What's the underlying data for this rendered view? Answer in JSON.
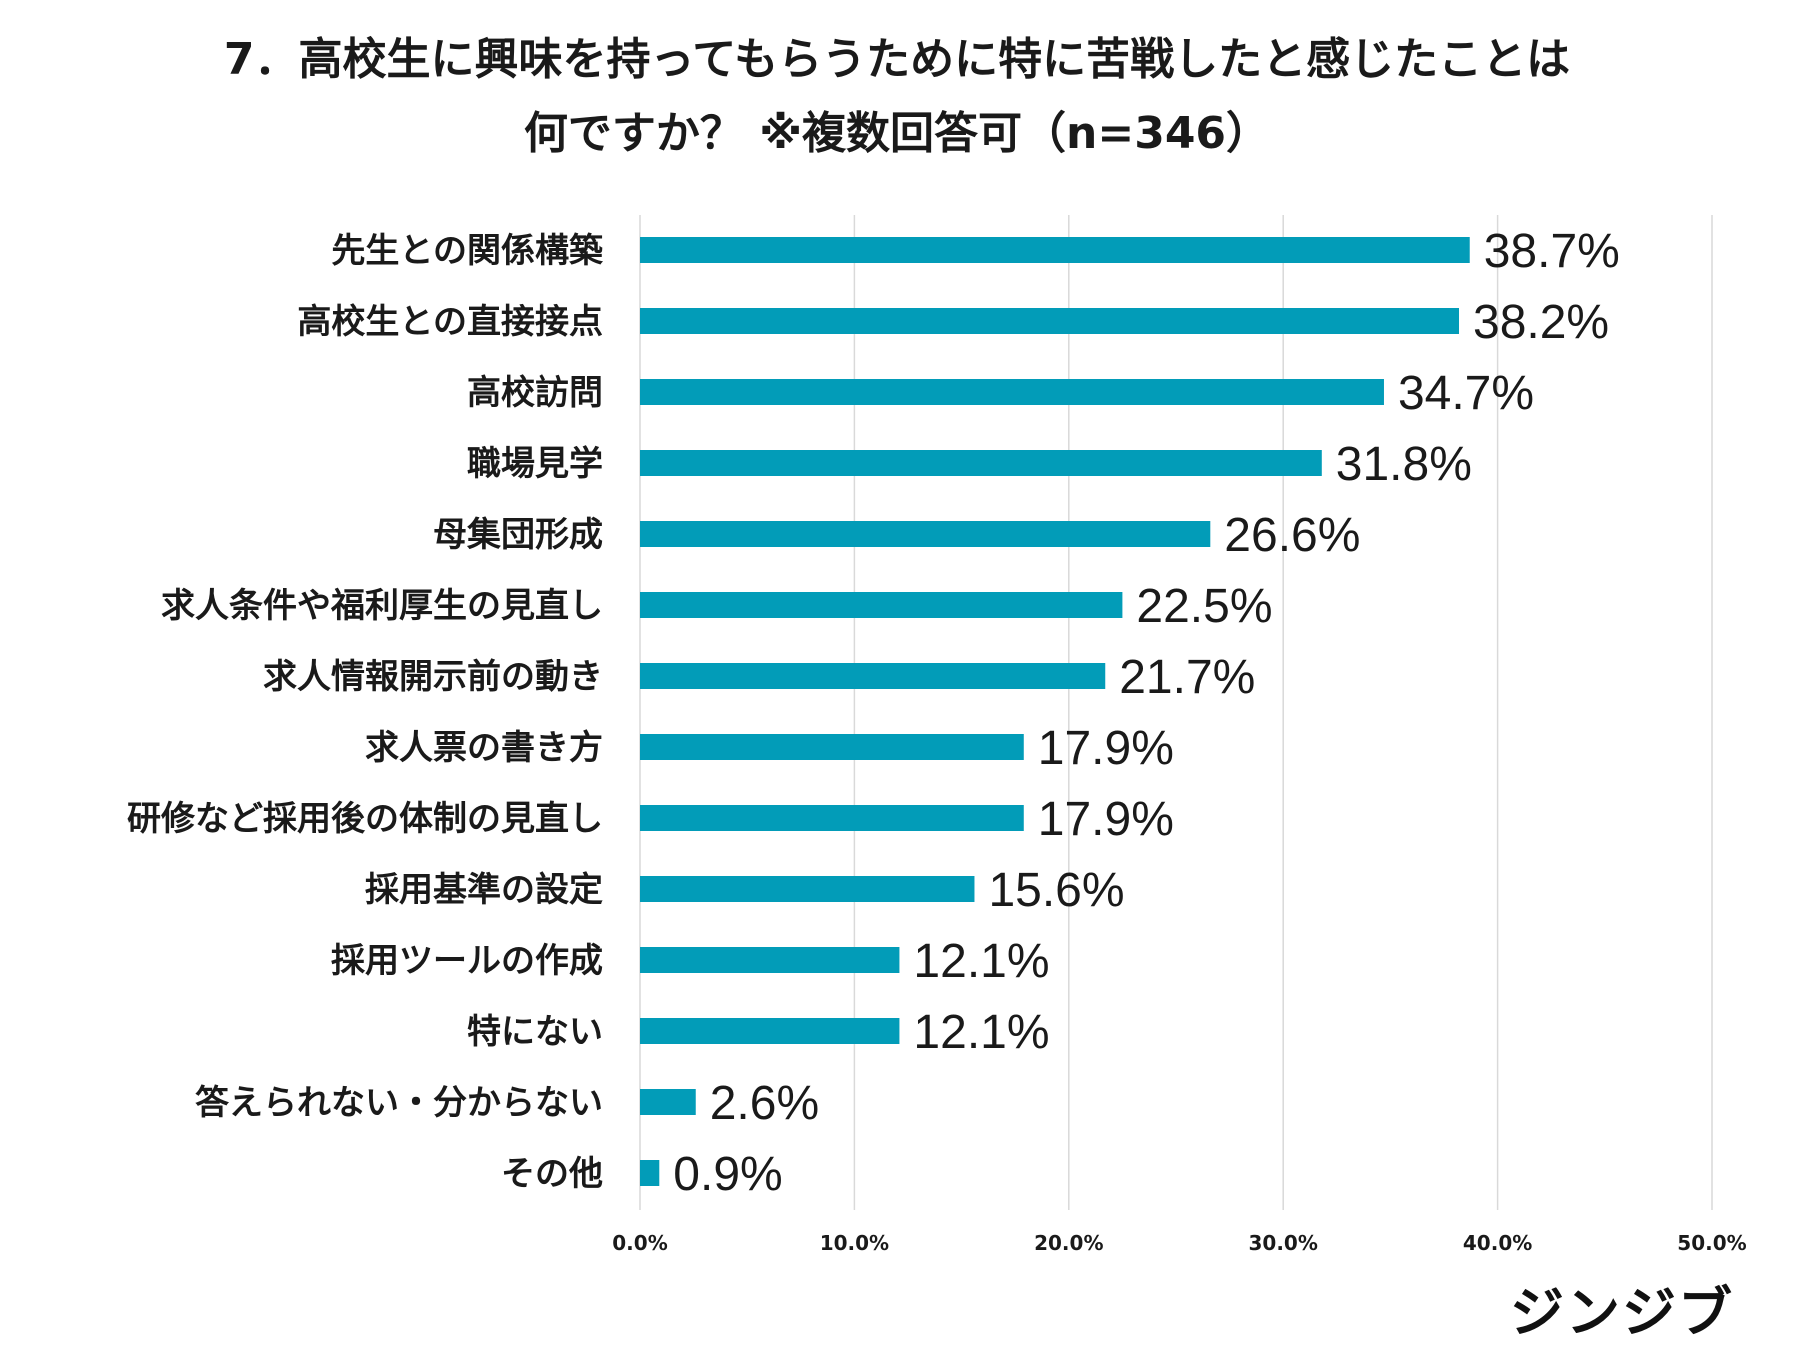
{
  "title_line1": "7．高校生に興味を持ってもらうために特に苦戦したと感じたことは",
  "title_line2": "何ですか？ ※複数回答可（n=346）",
  "logo_text": "ジンジブ",
  "colors": {
    "bar": "#029CB8",
    "grid": "#D9D9D9",
    "text": "#1a1a1a"
  },
  "chart_data": {
    "type": "bar",
    "orientation": "horizontal",
    "categories": [
      "先生との関係構築",
      "高校生との直接接点",
      "高校訪問",
      "職場見学",
      "母集団形成",
      "求人条件や福利厚生の見直し",
      "求人情報開示前の動き",
      "求人票の書き方",
      "研修など採用後の体制の見直し",
      "採用基準の設定",
      "採用ツールの作成",
      "特にない",
      "答えられない・分からない",
      "その他"
    ],
    "values": [
      38.7,
      38.2,
      34.7,
      31.8,
      26.6,
      22.5,
      21.7,
      17.9,
      17.9,
      15.6,
      12.1,
      12.1,
      2.6,
      0.9
    ],
    "value_labels": [
      "38.7%",
      "38.2%",
      "34.7%",
      "31.8%",
      "26.6%",
      "22.5%",
      "21.7%",
      "17.9%",
      "17.9%",
      "15.6%",
      "12.1%",
      "12.1%",
      "2.6%",
      "0.9%"
    ],
    "xlim": [
      0,
      50
    ],
    "xticks": [
      0,
      10,
      20,
      30,
      40,
      50
    ],
    "xtick_labels": [
      "0.0%",
      "10.0%",
      "20.0%",
      "30.0%",
      "40.0%",
      "50.0%"
    ],
    "grid": true,
    "unit": "%"
  }
}
